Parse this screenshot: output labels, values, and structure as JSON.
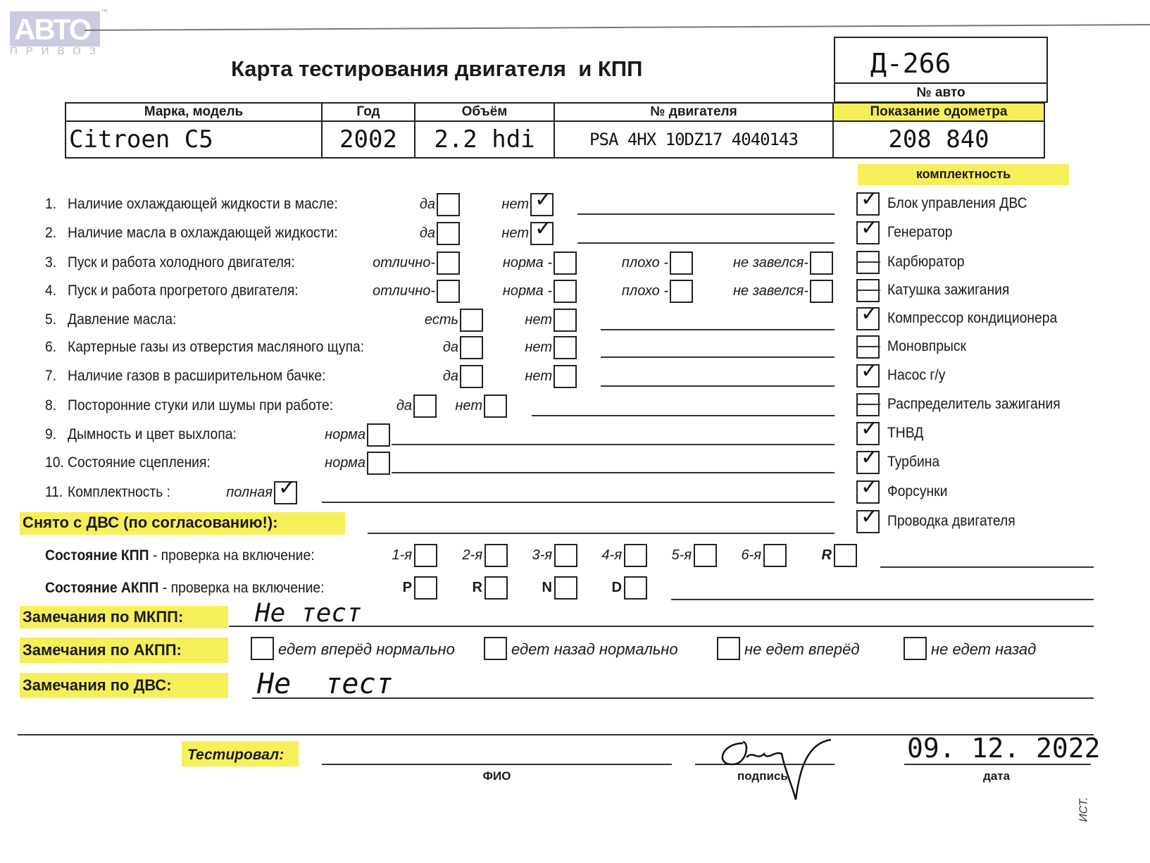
{
  "logo": {
    "text": "АВТО",
    "subtext": "ПРИВОЗ",
    "tm": "™"
  },
  "title": "Карта тестирования двигателя  и КПП",
  "car_number": {
    "value": "Д-266",
    "label": "№ авто"
  },
  "odometer": {
    "label": "Показание одометра",
    "value": "208 840"
  },
  "vehicle_table": {
    "headers": [
      "Марка, модель",
      "Год",
      "Объём",
      "№ двигателя"
    ],
    "values": [
      "Citroen  C5",
      "2002",
      "2.2 hdi",
      "PSA 4HX 10DZ17 4040143"
    ]
  },
  "questions": [
    {
      "num": "1.",
      "label": "Наличие охлаждающей жидкости в масле:",
      "options": [
        {
          "label": "да",
          "checked": false
        },
        {
          "label": "нет",
          "checked": true
        }
      ]
    },
    {
      "num": "2.",
      "label": "Наличие масла в охлаждающей жидкости:",
      "options": [
        {
          "label": "да",
          "checked": false
        },
        {
          "label": "нет",
          "checked": true
        }
      ]
    },
    {
      "num": "3.",
      "label": "Пуск и работа холодного двигателя:",
      "options": [
        {
          "label": "отлично-",
          "checked": false
        },
        {
          "label": "норма -",
          "checked": false
        },
        {
          "label": "плохо -",
          "checked": false
        },
        {
          "label": "не завелся-",
          "checked": false
        }
      ]
    },
    {
      "num": "4.",
      "label": "Пуск и работа прогретого двигателя:",
      "options": [
        {
          "label": "отлично-",
          "checked": false
        },
        {
          "label": "норма -",
          "checked": false
        },
        {
          "label": "плохо -",
          "checked": false
        },
        {
          "label": "не завелся-",
          "checked": false
        }
      ]
    },
    {
      "num": "5.",
      "label": "Давление масла:",
      "options": [
        {
          "label": "есть",
          "checked": false
        },
        {
          "label": "нет",
          "checked": false
        }
      ]
    },
    {
      "num": "6.",
      "label": "Картерные газы из отверстия масляного щупа:",
      "options": [
        {
          "label": "да",
          "checked": false
        },
        {
          "label": "нет",
          "checked": false
        }
      ]
    },
    {
      "num": "7.",
      "label": "Наличие газов в расширительном бачке:",
      "options": [
        {
          "label": "да",
          "checked": false
        },
        {
          "label": "нет",
          "checked": false
        }
      ]
    },
    {
      "num": "8.",
      "label": "Посторонние стуки или шумы при работе:",
      "options": [
        {
          "label": "да",
          "checked": false
        },
        {
          "label": "нет",
          "checked": false
        }
      ]
    },
    {
      "num": "9.",
      "label": "Дымность и цвет выхлопа:",
      "options": [
        {
          "label": "норма",
          "checked": false
        }
      ]
    },
    {
      "num": "10.",
      "label": "Состояние сцепления:",
      "options": [
        {
          "label": "норма",
          "checked": false
        }
      ]
    },
    {
      "num": "11.",
      "label": "Комплектность :",
      "options": [
        {
          "label": "полная",
          "checked": true
        }
      ]
    }
  ],
  "completeness": {
    "title": "комплектность",
    "items": [
      {
        "label": "Блок управления ДВС",
        "state": "checked"
      },
      {
        "label": "Генератор",
        "state": "checked"
      },
      {
        "label": "Карбюратор",
        "state": "dash"
      },
      {
        "label": "Катушка зажигания",
        "state": "dash"
      },
      {
        "label": "Компрессор кондиционера",
        "state": "checked"
      },
      {
        "label": "Моновпрыск",
        "state": "dash"
      },
      {
        "label": "Насос г/у",
        "state": "checked"
      },
      {
        "label": "Распределитель зажигания",
        "state": "dash"
      },
      {
        "label": "ТНВД",
        "state": "checked"
      },
      {
        "label": "Турбина",
        "state": "checked"
      },
      {
        "label": "Форсунки",
        "state": "checked"
      },
      {
        "label": "Проводка двигателя",
        "state": "checked"
      }
    ]
  },
  "removed": {
    "label": "Снято с ДВС (по согласованию!):"
  },
  "kpp": {
    "label_bold": "Состояние КПП",
    "label_rest": " - проверка на включение:",
    "gears": [
      "1-я",
      "2-я",
      "3-я",
      "4-я",
      "5-я",
      "6-я",
      "R"
    ]
  },
  "akpp": {
    "label_bold": "Состояние АКПП",
    "label_rest": " - проверка на включение:",
    "modes": [
      "P",
      "R",
      "N",
      "D"
    ]
  },
  "remarks": {
    "mkpp": {
      "label": "Замечания по МКПП:",
      "value": "Не тест"
    },
    "akpp": {
      "label": "Замечания по АКПП:",
      "options": [
        "едет вперёд нормально",
        "едет назад нормально",
        "не едет вперёд",
        "не едет назад"
      ]
    },
    "dvs": {
      "label": "Замечания по ДВС:",
      "value": "Не  тест"
    }
  },
  "tested": {
    "label": "Тестировал:",
    "fio_label": "ФИО",
    "signature_label": "подпись",
    "date_label": "дата",
    "date": "09. 12. 2022"
  },
  "margin_note": "ИСТ."
}
